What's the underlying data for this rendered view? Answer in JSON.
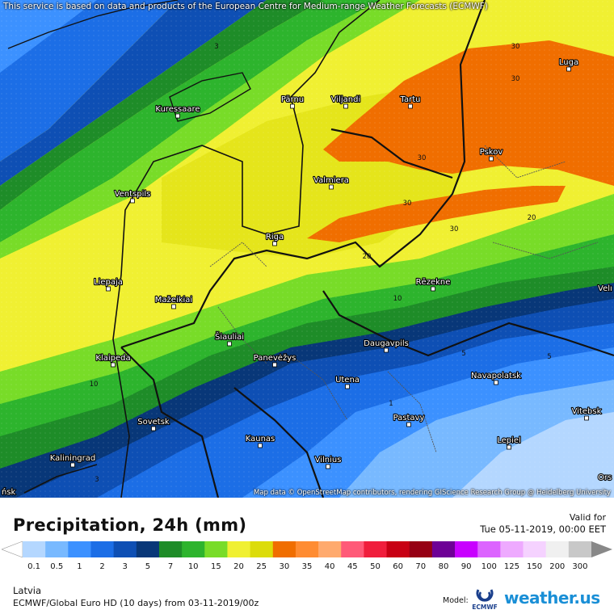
{
  "header": {
    "credit": "This service is based on data and products of the European Centre for Medium-range Weather Forecasts (ECMWF)"
  },
  "map": {
    "attribution": "Map data © OpenStreetMap contributors, rendering GIScience Research Group @ Heidelberg University",
    "cities": [
      {
        "name": "Luga"
      },
      {
        "name": "Pärnu"
      },
      {
        "name": "Viljandi"
      },
      {
        "name": "Tartu"
      },
      {
        "name": "Kuressaare"
      },
      {
        "name": "Pskov"
      },
      {
        "name": "Valmiera"
      },
      {
        "name": "Ventspils"
      },
      {
        "name": "Riga"
      },
      {
        "name": "Liepaja"
      },
      {
        "name": "Rēzekne"
      },
      {
        "name": "Mažeikiai"
      },
      {
        "name": "Šiauliai"
      },
      {
        "name": "Daugavpils"
      },
      {
        "name": "Klaipeda"
      },
      {
        "name": "Panevėžys"
      },
      {
        "name": "Navapolatsk"
      },
      {
        "name": "Utena"
      },
      {
        "name": "Vitebsk"
      },
      {
        "name": "Sovetsk"
      },
      {
        "name": "Pastavy"
      },
      {
        "name": "Kaunas"
      },
      {
        "name": "Lepiel"
      },
      {
        "name": "Kaliningrad"
      },
      {
        "name": "Vilnius"
      },
      {
        "name": "Velı"
      },
      {
        "name": "Ors"
      },
      {
        "name": "ńsk"
      }
    ],
    "contour_labels": [
      "30",
      "30",
      "30",
      "30",
      "30",
      "20",
      "20",
      "10",
      "10",
      "5",
      "5",
      "3",
      "3",
      "1"
    ]
  },
  "legend": {
    "title": "Precipitation, 24h (mm)",
    "valid_label": "Valid for",
    "valid_date": "Tue 05-11-2019, 00:00 EET",
    "colors": [
      "#b4d7ff",
      "#78b9ff",
      "#3c91ff",
      "#1c6ee6",
      "#0e4fb4",
      "#083778",
      "#1e8c28",
      "#2db42d",
      "#78dc28",
      "#f0f032",
      "#dcdc0a",
      "#f06e00",
      "#ff8c32",
      "#ffaa6e",
      "#ff5a78",
      "#f01e3c",
      "#c80014",
      "#960014",
      "#6e0096",
      "#c800ff",
      "#dc64ff",
      "#eeaaff",
      "#f5d2ff",
      "#f0f0f0",
      "#c8c8c8"
    ],
    "labels": [
      "0.1",
      "0.5",
      "1",
      "2",
      "3",
      "5",
      "7",
      "10",
      "15",
      "20",
      "25",
      "30",
      "35",
      "40",
      "45",
      "50",
      "60",
      "70",
      "80",
      "90",
      "100",
      "125",
      "150",
      "200",
      "300"
    ]
  },
  "footer": {
    "region": "Latvia",
    "model_line": "ECMWF/Global Euro HD (10 days) from 03-11-2019/00z",
    "model_label": "Model:",
    "ecmwf_label": "ECMWF",
    "brand": "weather.us"
  }
}
